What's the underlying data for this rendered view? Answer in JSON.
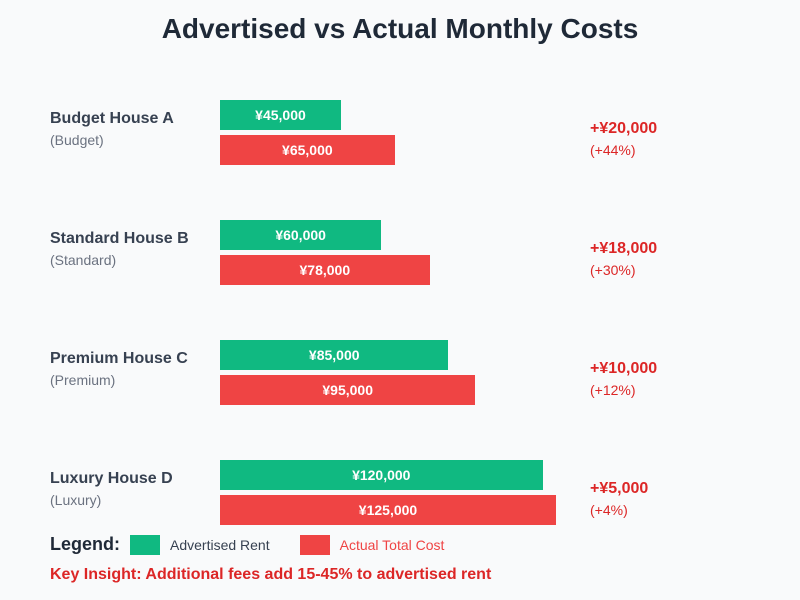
{
  "chart_data": {
    "type": "bar",
    "orientation": "horizontal",
    "title": "Advertised vs Actual Monthly Costs",
    "xlim": [
      0,
      125000
    ],
    "grid": false,
    "legend_placement": "bottom-left",
    "categories": [
      {
        "name": "Budget House A",
        "tier": "(Budget)",
        "diff": "+¥20,000",
        "pct": "(+44%)"
      },
      {
        "name": "Standard House B",
        "tier": "(Standard)",
        "diff": "+¥18,000",
        "pct": "(+30%)"
      },
      {
        "name": "Premium House C",
        "tier": "(Premium)",
        "diff": "+¥10,000",
        "pct": "(+12%)"
      },
      {
        "name": "Luxury House D",
        "tier": "(Luxury)",
        "diff": "+¥5,000",
        "pct": "(+4%)"
      }
    ],
    "series": [
      {
        "name": "Advertised Rent",
        "color": "#10b981",
        "values": [
          45000,
          60000,
          85000,
          120000
        ],
        "labels": [
          "¥45,000",
          "¥60,000",
          "¥85,000",
          "¥120,000"
        ]
      },
      {
        "name": "Actual Total Cost",
        "color": "#ef4444",
        "values": [
          65000,
          78000,
          95000,
          125000
        ],
        "labels": [
          "¥65,000",
          "¥78,000",
          "¥95,000",
          "¥125,000"
        ]
      }
    ]
  },
  "legend": {
    "title": "Legend:"
  },
  "insight": "Key Insight: Additional fees add 15-45% to advertised rent",
  "colors": {
    "diff": "#dc2626",
    "legend_advertised_text": "#374151",
    "legend_actual_text": "#ef4444"
  }
}
